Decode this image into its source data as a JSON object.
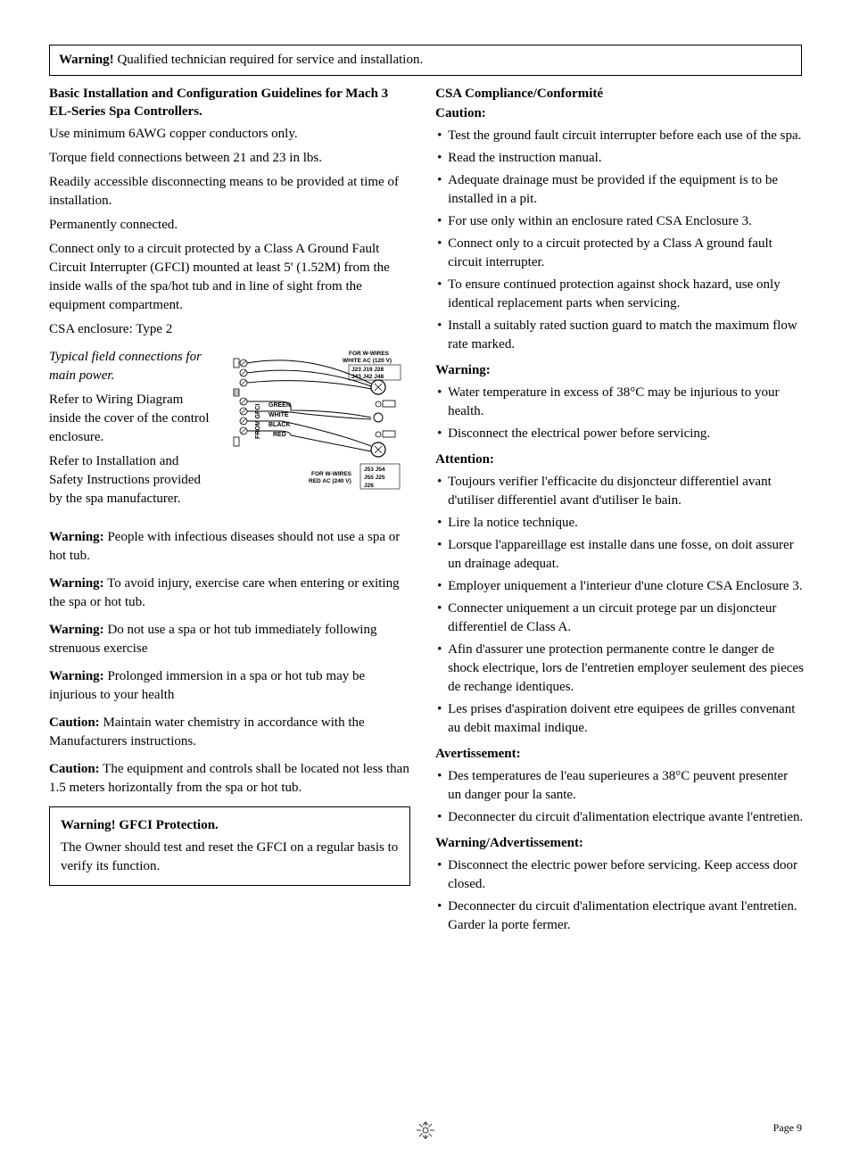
{
  "top_warning": {
    "label": "Warning!",
    "text": " Qualified technician required for service and installation."
  },
  "left": {
    "title": "Basic Installation and Configuration Guidelines for Mach 3 EL-Series Spa Controllers.",
    "p1": "Use minimum 6AWG copper conductors only.",
    "p2": "Torque field connections between 21 and 23 in lbs.",
    "p3": "Readily accessible disconnecting means to be provided at time of installation.",
    "p4": "Permanently connected.",
    "p5": "Connect only to a circuit protected by a Class A Ground Fault Circuit Interrupter (GFCI) mounted at least 5' (1.52M) from the inside walls of the spa/hot tub and in line of sight from the equipment compartment.",
    "p6": "CSA enclosure: Type 2",
    "field_title": "Typical field connections for main power.",
    "field_p1": "Refer to Wiring Diagram inside the cover of the control enclosure.",
    "field_p2": "Refer to Installation and Safety Instructions provided by the spa manufacturer.",
    "w1_label": "Warning:",
    "w1_text": " People with infectious diseases should not use a spa or hot tub.",
    "w2_label": "Warning:",
    "w2_text": " To avoid injury, exercise care when entering or exiting the spa or hot tub.",
    "w3_label": "Warning:",
    "w3_text": " Do not use a spa or hot tub immediately following strenuous exercise",
    "w4_label": "Warning:",
    "w4_text": " Prolonged immersion in a spa or hot tub may be injurious to your health",
    "c1_label": "Caution:",
    "c1_text": " Maintain water chemistry in accordance with the Manufacturers instructions.",
    "c2_label": "Caution:",
    "c2_text": " The equipment and controls shall be located not less than 1.5 meters horizontally from the spa or hot tub.",
    "gfci_title": "Warning! GFCI Protection.",
    "gfci_text": "The Owner should test and reset the GFCI on a regular basis to verify its function."
  },
  "right": {
    "title": "CSA Compliance/Conformité",
    "caution_label": "Caution:",
    "caution_items": [
      "Test the ground fault circuit interrupter before each use of the spa.",
      "Read the instruction manual.",
      "Adequate drainage must be provided if the equipment is to be installed in a pit.",
      "For use only within an enclosure rated CSA Enclosure 3.",
      "Connect only to a circuit protected by a Class A ground fault circuit interrupter.",
      "To ensure continued protection against shock hazard, use only identical replacement parts when servicing.",
      "Install a suitably rated suction guard to match the maximum flow rate marked."
    ],
    "warning_label": "Warning:",
    "warning_items": [
      "Water temperature in excess of 38°C may be injurious to your health.",
      "Disconnect the electrical power before servicing."
    ],
    "attention_label": "Attention:",
    "attention_items": [
      "Toujours verifier l'efficacite du disjoncteur differentiel avant d'utiliser differentiel avant d'utiliser le bain.",
      "Lire la notice technique.",
      "Lorsque l'appareillage est installe dans une fosse, on doit assurer un drainage adequat.",
      "Employer uniquement a l'interieur d'une cloture CSA Enclosure 3.",
      "Connecter uniquement a un circuit protege par un disjoncteur differentiel de Class A.",
      "Afin d'assurer une protection permanente contre le danger de shock electrique, lors de l'entretien employer seulement des pieces de rechange identiques.",
      "Les prises d'aspiration doivent etre equipees de grilles convenant au debit maximal indique."
    ],
    "avert_label": "Avertissement:",
    "avert_items": [
      "Des temperatures de l'eau superieures a 38°C peuvent presenter un danger pour la sante.",
      "Deconnecter du circuit d'alimentation electrique avante l'entretien."
    ],
    "wadv_label": "Warning/Advertissement:",
    "wadv_items": [
      "Disconnect the electric power before servicing. Keep access door closed.",
      "Deconnecter du circuit d'alimentation electrique avant l'entretien. Garder la porte fermer."
    ]
  },
  "diagram": {
    "top_label1": "FOR W-WIRES",
    "top_label2": "WHITE AC (120 V)",
    "top_j_row1": "J23  J19  J28",
    "top_j_row2": "J43  J42  J48",
    "from_gfci": "FROM GFCI",
    "wire_green": "GREEN",
    "wire_white": "WHITE",
    "wire_black": "BLACK",
    "wire_red": "RED",
    "bot_label1": "FOR W-WIRES",
    "bot_label2": "RED AC (240 V)",
    "bot_j1": "J53  J54",
    "bot_j2": "J55  J25",
    "bot_j3": "J26",
    "colors": {
      "stroke": "#000000",
      "fill_bg": "#ffffff"
    }
  },
  "footer": {
    "page": "Page 9"
  }
}
